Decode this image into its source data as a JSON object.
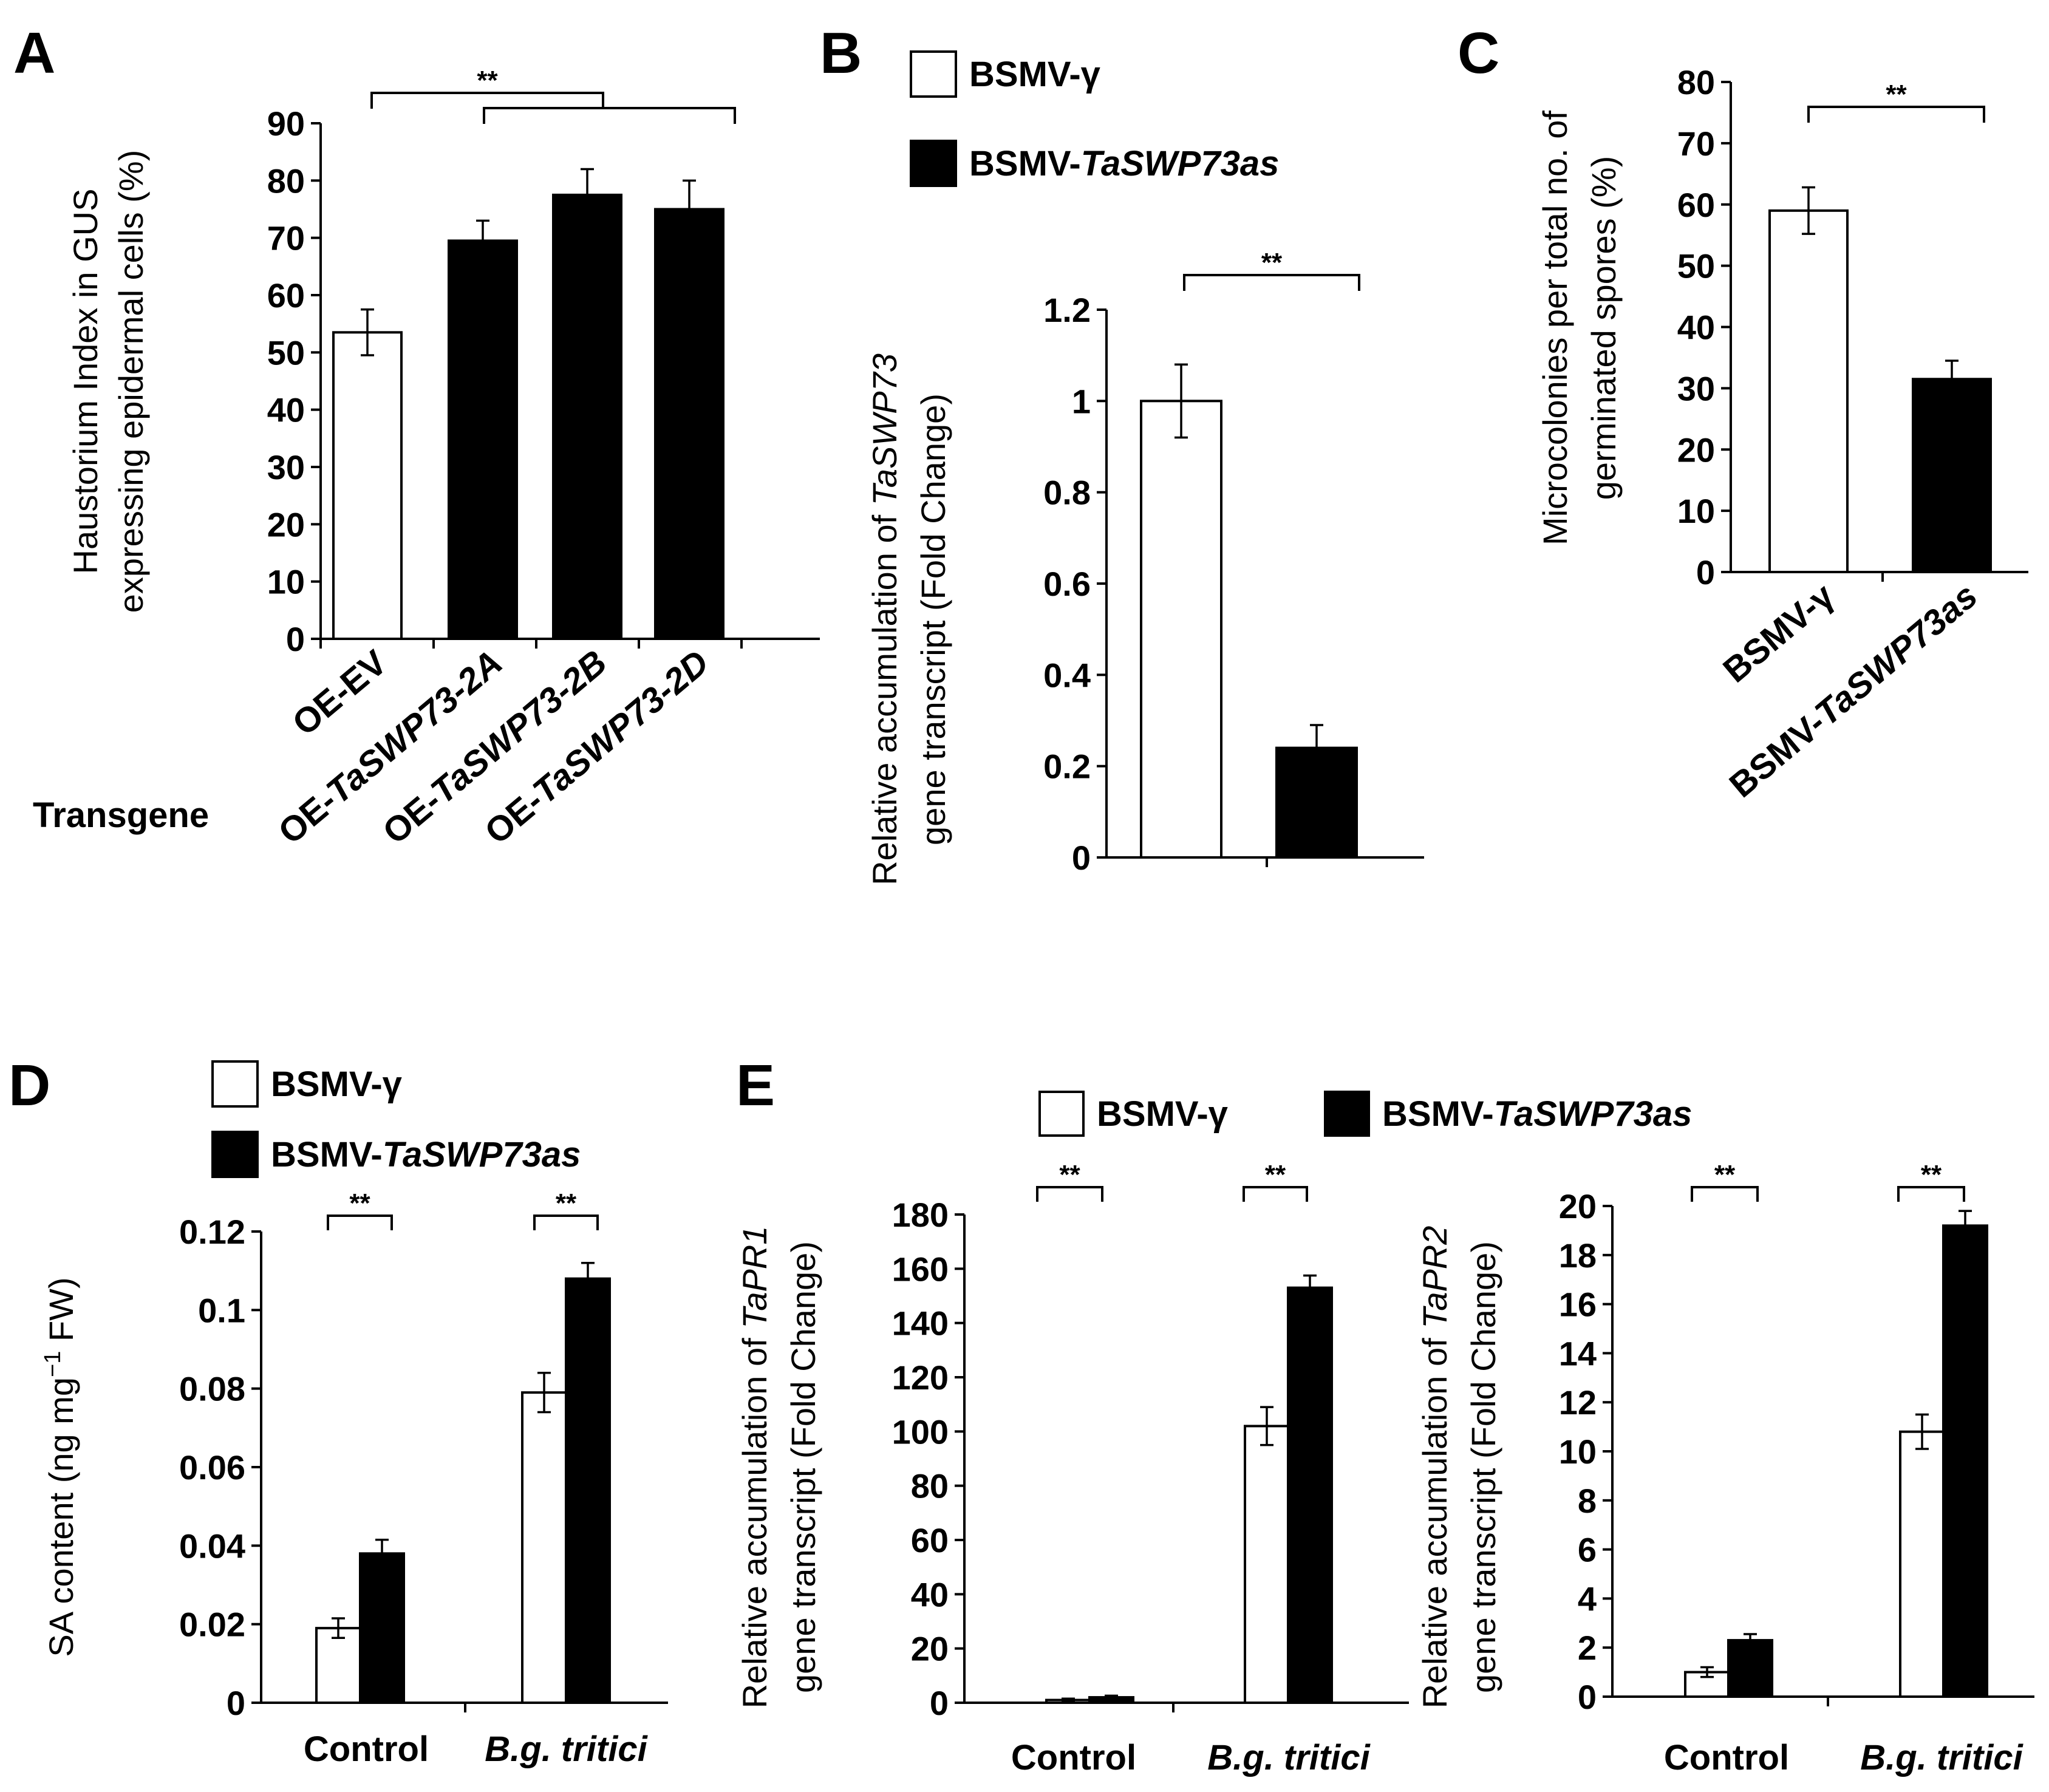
{
  "colors": {
    "open_bar": "#ffffff",
    "filled_bar": "#000000",
    "axis": "#000000"
  },
  "chart_data": [
    {
      "panel": "A",
      "type": "bar",
      "ylabel_line1": "Haustorium Index in GUS",
      "ylabel_line2": "expressing  epidermal cells (%)",
      "xlabel": "Transgene",
      "categories": [
        {
          "prefix": "OE-EV",
          "italic": ""
        },
        {
          "prefix": "OE-",
          "italic": "TaSWP73-2A"
        },
        {
          "prefix": "OE-",
          "italic": "TaSWP73-2B"
        },
        {
          "prefix": "OE-",
          "italic": "TaSWP73-2D"
        }
      ],
      "values": [
        53.5,
        69.5,
        77.5,
        75.0
      ],
      "errors": [
        4,
        3.5,
        4.5,
        5
      ],
      "fills": [
        "open",
        "filled",
        "filled",
        "filled"
      ],
      "ylim": [
        0,
        90
      ],
      "ticks": [
        "0",
        "10",
        "20",
        "30",
        "40",
        "50",
        "60",
        "70",
        "80",
        "90"
      ],
      "significance": [
        "**"
      ]
    },
    {
      "panel": "B",
      "type": "bar",
      "ylabel_line1_prefix": "Relative accumulation of ",
      "ylabel_line1_italic": "TaSWP73",
      "ylabel_line2": "gene transcript  (Fold Change)",
      "legend": [
        {
          "prefix": "BSMV-γ",
          "italic": "",
          "fill": "open"
        },
        {
          "prefix": "BSMV-",
          "italic": "TaSWP73as",
          "fill": "filled"
        }
      ],
      "values": [
        1.0,
        0.24
      ],
      "errors": [
        0.08,
        0.05
      ],
      "fills": [
        "open",
        "filled"
      ],
      "ylim": [
        0,
        1.2
      ],
      "ticks": [
        "0",
        "0.2",
        "0.4",
        "0.6",
        "0.8",
        "1",
        "1.2"
      ],
      "significance": [
        "**"
      ]
    },
    {
      "panel": "C",
      "type": "bar",
      "ylabel_line1": "Microcolonies per total no. of",
      "ylabel_line2": "germinated spores (%)",
      "categories": [
        {
          "prefix": "BSMV-γ",
          "italic": ""
        },
        {
          "prefix": "BSMV-",
          "italic": "TaSWP73as"
        }
      ],
      "values": [
        59.0,
        31.5
      ],
      "errors": [
        3.8,
        3.0
      ],
      "fills": [
        "open",
        "filled"
      ],
      "ylim": [
        0,
        80
      ],
      "ticks": [
        "0",
        "10",
        "20",
        "30",
        "40",
        "50",
        "60",
        "70",
        "80"
      ],
      "significance": [
        "**"
      ]
    },
    {
      "panel": "D",
      "type": "bar",
      "ylabel_main": "SA content (ng mg",
      "ylabel_sup": "−1",
      "ylabel_end": " FW)",
      "legend": [
        {
          "prefix": "BSMV-γ",
          "italic": "",
          "fill": "open"
        },
        {
          "prefix": "BSMV-",
          "italic": "TaSWP73as",
          "fill": "filled"
        }
      ],
      "categories": [
        {
          "prefix": "Control",
          "italic": ""
        },
        {
          "prefix": "",
          "italic": "B.g. tritici"
        }
      ],
      "series": [
        {
          "name": "BSMV-γ",
          "values": [
            0.019,
            0.079
          ],
          "errors": [
            0.0025,
            0.005
          ]
        },
        {
          "name": "BSMV-TaSWP73as",
          "values": [
            0.038,
            0.108
          ],
          "errors": [
            0.0035,
            0.004
          ]
        }
      ],
      "ylim": [
        0,
        0.12
      ],
      "ticks": [
        "0",
        "0.02",
        "0.04",
        "0.06",
        "0.08",
        "0.1",
        "0.12"
      ],
      "significance": [
        "**",
        "**"
      ]
    },
    {
      "panel": "E",
      "type": "bar",
      "ylabel_line1_prefix": "Relative accumulation of ",
      "ylabel_line1_italic": "TaPR1",
      "ylabel_line2": "gene transcript  (Fold Change)",
      "legend": [
        {
          "prefix": "BSMV-γ",
          "italic": "",
          "fill": "open"
        },
        {
          "prefix": "BSMV-",
          "italic": "TaSWP73as",
          "fill": "filled"
        }
      ],
      "categories": [
        {
          "prefix": "Control",
          "italic": ""
        },
        {
          "prefix": "",
          "italic": "B.g. tritici"
        }
      ],
      "series": [
        {
          "name": "BSMV-γ",
          "values": [
            1,
            102
          ],
          "errors": [
            0.5,
            7
          ]
        },
        {
          "name": "BSMV-TaSWP73as",
          "values": [
            2,
            153
          ],
          "errors": [
            0.6,
            4.5
          ]
        }
      ],
      "ylim": [
        0,
        180
      ],
      "ticks": [
        "0",
        "20",
        "40",
        "60",
        "80",
        "100",
        "120",
        "140",
        "160",
        "180"
      ],
      "significance": [
        "**",
        "**"
      ]
    },
    {
      "panel": "",
      "type": "bar",
      "ylabel_line1_prefix": "Relative accumulation of ",
      "ylabel_line1_italic": "TaPR2",
      "ylabel_line2": "gene transcript  (Fold Change)",
      "categories": [
        {
          "prefix": "Control",
          "italic": ""
        },
        {
          "prefix": "",
          "italic": "B.g. tritici"
        }
      ],
      "series": [
        {
          "name": "BSMV-γ",
          "values": [
            1.0,
            10.8
          ],
          "errors": [
            0.2,
            0.7
          ]
        },
        {
          "name": "BSMV-TaSWP73as",
          "values": [
            2.3,
            19.2
          ],
          "errors": [
            0.25,
            0.6
          ]
        }
      ],
      "ylim": [
        0,
        20
      ],
      "ticks": [
        "0",
        "2",
        "4",
        "6",
        "8",
        "10",
        "12",
        "14",
        "16",
        "18",
        "20"
      ],
      "significance": [
        "**",
        "**"
      ]
    }
  ]
}
